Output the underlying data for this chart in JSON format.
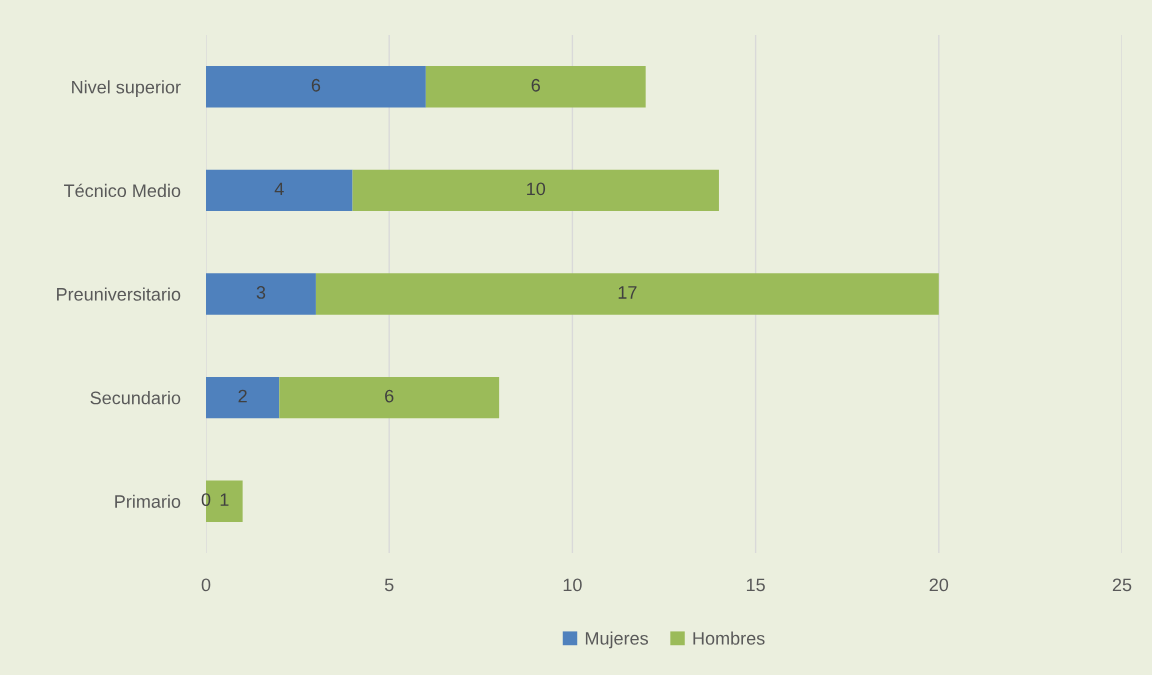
{
  "chart_data": {
    "type": "bar",
    "orientation": "horizontal",
    "stacked": true,
    "categories": [
      "Nivel superior",
      "Técnico Medio",
      "Preuniversitario",
      "Secundario",
      "Primario"
    ],
    "series": [
      {
        "name": "Mujeres",
        "color": "#4f81bd",
        "values": [
          6,
          4,
          3,
          2,
          0
        ]
      },
      {
        "name": "Hombres",
        "color": "#9bbb59",
        "values": [
          6,
          10,
          17,
          6,
          1
        ]
      }
    ],
    "xlim": [
      0,
      25
    ],
    "xticks": [
      0,
      5,
      10,
      15,
      20,
      25
    ],
    "grid": "x",
    "legend": "bottom",
    "data_labels": true
  }
}
